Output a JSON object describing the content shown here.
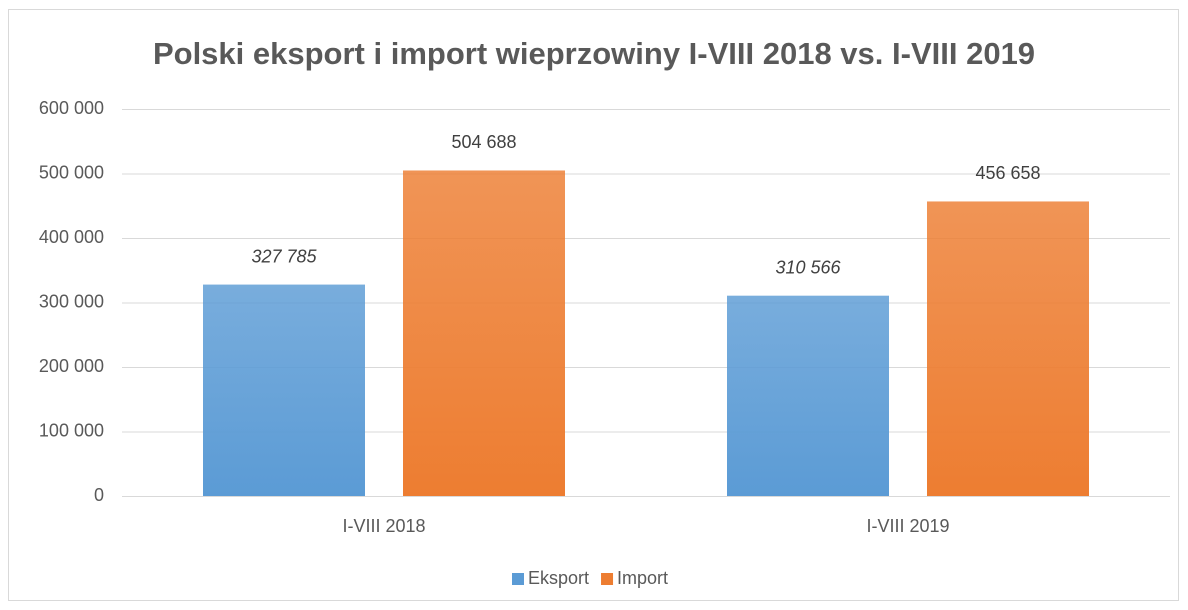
{
  "chart_data": {
    "type": "bar",
    "title": "Polski eksport i import wieprzowiny I-VIII 2018 vs. I-VIII 2019",
    "categories": [
      "I-VIII 2018",
      "I-VIII 2019"
    ],
    "series": [
      {
        "name": "Eksport",
        "color": "#5b9bd5",
        "values": [
          327785,
          310566
        ],
        "value_labels": [
          "327 785",
          "310 566"
        ],
        "label_style": "italic"
      },
      {
        "name": "Import",
        "color": "#ed7d31",
        "values": [
          504688,
          456658
        ],
        "value_labels": [
          "504 688",
          "456 658"
        ],
        "label_style": "normal"
      }
    ],
    "ylim": [
      0,
      600000
    ],
    "yticks": [
      {
        "value": 0,
        "label": "0"
      },
      {
        "value": 100000,
        "label": "100 000"
      },
      {
        "value": 200000,
        "label": "200 000"
      },
      {
        "value": 300000,
        "label": "300 000"
      },
      {
        "value": 400000,
        "label": "400 000"
      },
      {
        "value": 500000,
        "label": "500 000"
      },
      {
        "value": 600000,
        "label": "600 000"
      }
    ],
    "grid": true,
    "legend": "bottom"
  }
}
